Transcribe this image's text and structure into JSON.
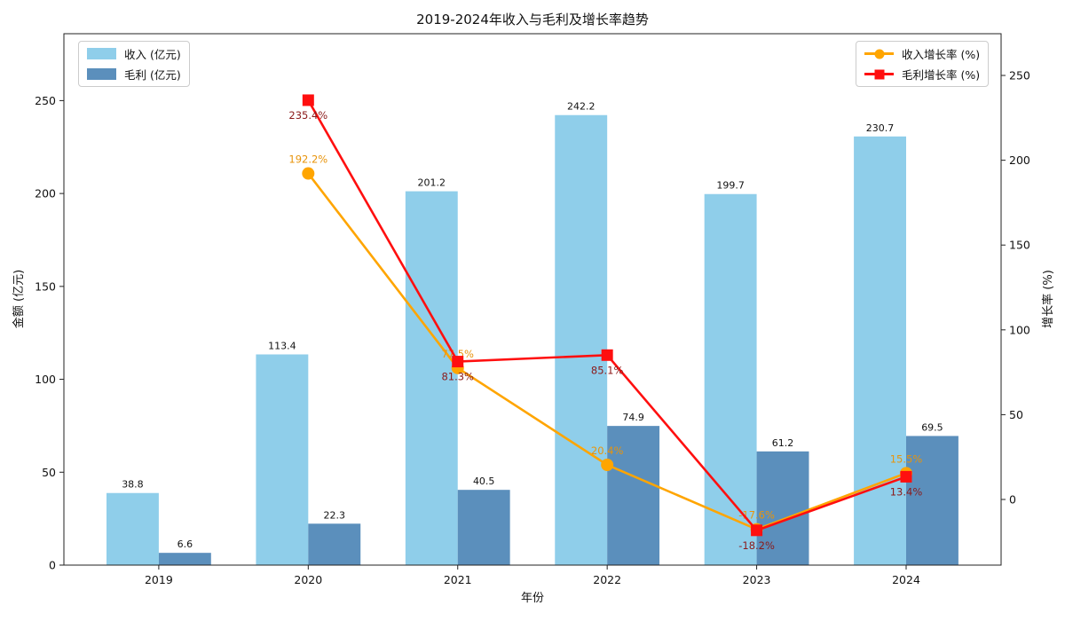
{
  "chart_data": {
    "type": "bar+line combo (dual axis)",
    "title": "2019-2024年收入与毛利及增长率趋势",
    "categories": [
      "2019",
      "2020",
      "2021",
      "2022",
      "2023",
      "2024"
    ],
    "bar_series": [
      {
        "name": "收入 (亿元)",
        "color": "#8FCEEA",
        "values": [
          38.8,
          113.4,
          201.2,
          242.2,
          199.7,
          230.7
        ],
        "labels": [
          "38.8",
          "113.4",
          "201.2",
          "242.2",
          "199.7",
          "230.7"
        ]
      },
      {
        "name": "毛利 (亿元)",
        "color": "#5B8FBC",
        "values": [
          6.6,
          22.3,
          40.5,
          74.9,
          61.2,
          69.5
        ],
        "labels": [
          "6.6",
          "22.3",
          "40.5",
          "74.9",
          "61.2",
          "69.5"
        ]
      }
    ],
    "line_series": [
      {
        "name": "收入增长率 (%)",
        "color": "#FFA500",
        "label_color": "#E8940C",
        "marker": "circle",
        "label_position": "above",
        "values": [
          null,
          192.2,
          77.5,
          20.4,
          -17.6,
          15.5
        ],
        "labels": [
          "",
          "192.2%",
          "77.5%",
          "20.4%",
          "-17.6%",
          "15.5%"
        ]
      },
      {
        "name": "毛利增长率 (%)",
        "color": "#FF0F0F",
        "label_color": "#8B1A1A",
        "marker": "square",
        "label_position": "below",
        "values": [
          null,
          235.4,
          81.3,
          85.1,
          -18.2,
          13.4
        ],
        "labels": [
          "",
          "235.4%",
          "81.3%",
          "85.1%",
          "-18.2%",
          "13.4%"
        ]
      }
    ],
    "axes": {
      "x": {
        "label": "年份"
      },
      "left": {
        "label": "金额 (亿元)",
        "ticks": [
          0,
          50,
          100,
          150,
          200,
          250
        ],
        "range": [
          0,
          286
        ]
      },
      "right": {
        "label": "增长率 (%)",
        "ticks": [
          0,
          50,
          100,
          150,
          200,
          250
        ],
        "range": [
          -38.7,
          274.6
        ]
      }
    },
    "legend_left": [
      "收入 (亿元)",
      "毛利 (亿元)"
    ],
    "legend_right": [
      "收入增长率 (%)",
      "毛利增长率 (%)"
    ]
  }
}
